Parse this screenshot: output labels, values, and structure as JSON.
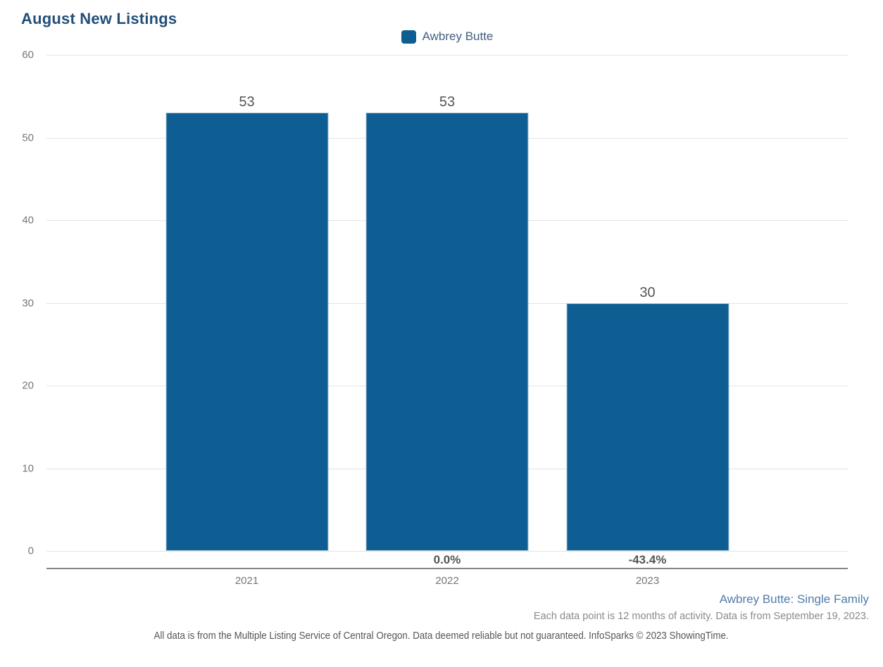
{
  "chart": {
    "title": "August New Listings",
    "legend": {
      "label": "Awbrey Butte"
    }
  },
  "chart_data": {
    "type": "bar",
    "title": "August New Listings",
    "series": [
      {
        "name": "Awbrey Butte",
        "values": [
          53,
          53,
          30
        ]
      }
    ],
    "categories": [
      "2021",
      "2022",
      "2023"
    ],
    "value_labels": [
      "53",
      "53",
      "30"
    ],
    "pct_change_labels": [
      "",
      "0.0%",
      "-43.4%"
    ],
    "ylim": [
      0,
      60
    ],
    "yticks": [
      0,
      10,
      20,
      30,
      40,
      50,
      60
    ],
    "grid": "horizontal",
    "legend_position": "top-center",
    "xlabel": "",
    "ylabel": ""
  },
  "footer": {
    "series_note": "Awbrey Butte: Single Family",
    "data_note": "Each data point is 12 months of activity. Data is from September 19, 2023.",
    "disclaimer": "All data is from the Multiple Listing Service of Central Oregon. Data deemed reliable but not guaranteed. InfoSparks © 2023 ShowingTime."
  },
  "colors": {
    "bar": "#0e5e94",
    "title": "#234e79",
    "axis_text": "#767676",
    "value_text": "#555555",
    "gridline": "#e3e3e3",
    "axis_line": "#858585",
    "legend_text": "#44607e",
    "footer_link": "#4f7cab",
    "footer_note": "#8a8a8a",
    "disclaimer_text": "#565656"
  }
}
